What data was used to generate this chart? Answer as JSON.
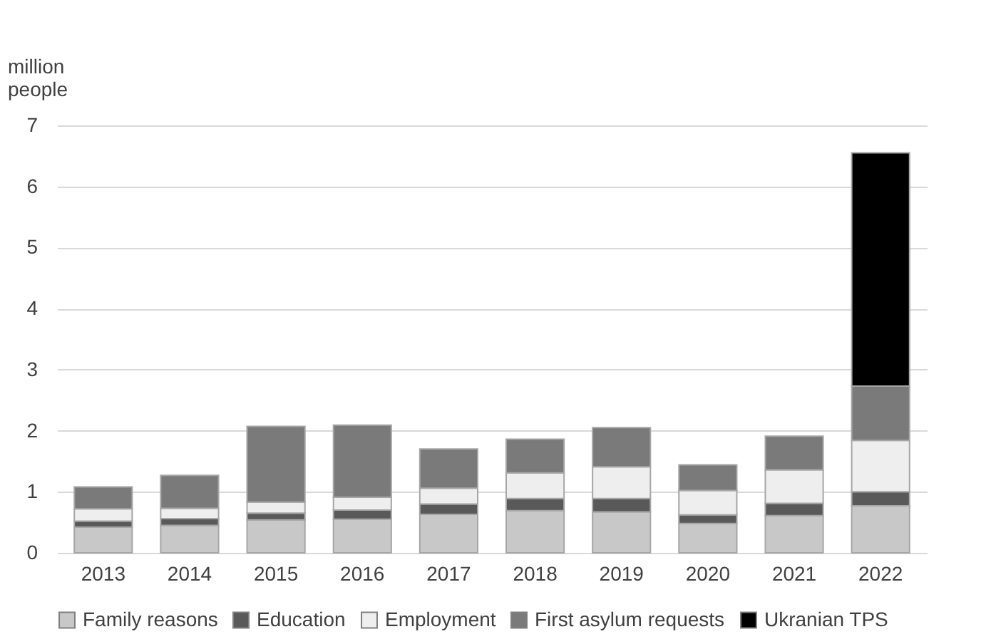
{
  "chart_data": {
    "type": "bar",
    "stacked": true,
    "ylabel": "million people",
    "categories": [
      "2013",
      "2014",
      "2015",
      "2016",
      "2017",
      "2018",
      "2019",
      "2020",
      "2021",
      "2022"
    ],
    "series": [
      {
        "name": "Family reasons",
        "color": "#c8c8c8",
        "values": [
          0.42,
          0.45,
          0.54,
          0.55,
          0.63,
          0.69,
          0.67,
          0.48,
          0.61,
          0.77
        ]
      },
      {
        "name": "Education",
        "color": "#595959",
        "values": [
          0.1,
          0.11,
          0.11,
          0.15,
          0.17,
          0.2,
          0.22,
          0.14,
          0.2,
          0.23
        ]
      },
      {
        "name": "Employment",
        "color": "#eeeeee",
        "values": [
          0.2,
          0.17,
          0.18,
          0.21,
          0.26,
          0.42,
          0.52,
          0.4,
          0.55,
          0.84
        ]
      },
      {
        "name": "First asylum requests",
        "color": "#7a7a7a",
        "values": [
          0.36,
          0.54,
          1.24,
          1.18,
          0.64,
          0.55,
          0.64,
          0.42,
          0.55,
          0.89
        ]
      },
      {
        "name": "Ukranian TPS",
        "color": "#000000",
        "values": [
          null,
          null,
          null,
          null,
          null,
          null,
          null,
          null,
          null,
          3.82
        ]
      }
    ],
    "ylim": [
      0,
      7
    ],
    "yticks": [
      0,
      1,
      2,
      3,
      4,
      5,
      6,
      7
    ],
    "grid": "y",
    "legend": "bottom"
  }
}
